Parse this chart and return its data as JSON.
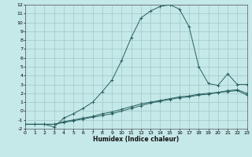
{
  "xlabel": "Humidex (Indice chaleur)",
  "bg_color": "#c5e8e8",
  "grid_color": "#a0c8c8",
  "line_color": "#2a6060",
  "xlim": [
    0,
    23
  ],
  "ylim": [
    -2,
    12
  ],
  "xtick_labels": [
    "0",
    "1",
    "2",
    "3",
    "4",
    "5",
    "6",
    "7",
    "8",
    "9",
    "10",
    "11",
    "12",
    "13",
    "14",
    "15",
    "16",
    "17",
    "18",
    "19",
    "20",
    "21",
    "2223"
  ],
  "ytick_labels": [
    "-2",
    "-1",
    "0",
    "1",
    "2",
    "3",
    "4",
    "5",
    "6",
    "7",
    "8",
    "9",
    "10",
    "11",
    "12"
  ],
  "ytick_vals": [
    -2,
    -1,
    0,
    1,
    2,
    3,
    4,
    5,
    6,
    7,
    8,
    9,
    10,
    11,
    12
  ],
  "curve_main_x": [
    0,
    1,
    2,
    3,
    4,
    5,
    6,
    7,
    8,
    9,
    10,
    11,
    12,
    13,
    14,
    15,
    16,
    17,
    18,
    19,
    20,
    21,
    22,
    23
  ],
  "curve_main_y": [
    -1.5,
    -1.5,
    -1.5,
    -1.8,
    -0.8,
    -0.3,
    0.3,
    1.0,
    2.2,
    3.5,
    5.7,
    8.3,
    10.5,
    11.3,
    11.8,
    12.0,
    11.5,
    9.5,
    5.0,
    3.1,
    2.9,
    4.2,
    3.0,
    3.0
  ],
  "curve_low_x": [
    0,
    1,
    2,
    3,
    4,
    5,
    6,
    7,
    8,
    9,
    10,
    11,
    12,
    13,
    14,
    15,
    16,
    17,
    18,
    19,
    20,
    21,
    22,
    23
  ],
  "curve_low_y": [
    -1.5,
    -1.5,
    -1.5,
    -1.5,
    -1.3,
    -1.1,
    -0.9,
    -0.7,
    -0.5,
    -0.3,
    0.0,
    0.3,
    0.6,
    0.9,
    1.1,
    1.3,
    1.5,
    1.6,
    1.8,
    1.9,
    2.1,
    2.2,
    2.3,
    1.8
  ],
  "curve_high_x": [
    0,
    1,
    2,
    3,
    4,
    5,
    6,
    7,
    8,
    9,
    10,
    11,
    12,
    13,
    14,
    15,
    16,
    17,
    18,
    19,
    20,
    21,
    22,
    23
  ],
  "curve_high_y": [
    -1.5,
    -1.5,
    -1.5,
    -1.5,
    -1.2,
    -1.0,
    -0.8,
    -0.6,
    -0.3,
    -0.1,
    0.2,
    0.5,
    0.8,
    1.0,
    1.2,
    1.4,
    1.6,
    1.7,
    1.9,
    2.0,
    2.1,
    2.3,
    2.4,
    2.0
  ]
}
